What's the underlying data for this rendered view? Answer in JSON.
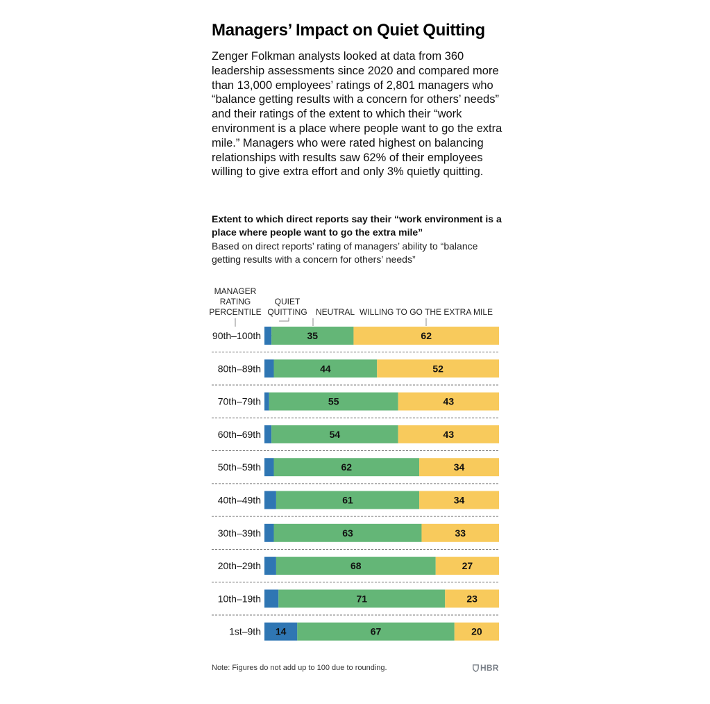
{
  "title": "Managers’ Impact on Quiet Quitting",
  "intro": "Zenger Folkman analysts looked at data from 360 leadership assessments since 2020 and compared more than 13,000 employees’ ratings of 2,801 managers who “balance getting results with a concern for others’ needs” and their ratings of the extent to which their “work environment is a place where people want to go the extra mile.” Managers who were rated highest on balancing relationships with results saw 62% of their employees willing to give extra effort and only 3% quietly quitting.",
  "chart_heading": "Extent to which direct reports say their “work environment is a place where people want to go the extra mile”",
  "chart_subheading": "Based on direct reports’ rating of managers’ ability to “balance getting results with a concern for others’ needs”",
  "note": "Note: Figures do not add up to 100 due to rounding.",
  "brand": "HBR",
  "brand_icon": "shield-icon",
  "chart_data": {
    "type": "bar",
    "orientation": "horizontal",
    "stacked": true,
    "row_header": [
      "MANAGER",
      "RATING",
      "PERCENTILE"
    ],
    "categories": [
      "90th–100th",
      "80th–89th",
      "70th–79th",
      "60th–69th",
      "50th–59th",
      "40th–49th",
      "30th–39th",
      "20th–29th",
      "10th–19th",
      "1st–9th"
    ],
    "series": [
      {
        "name": "QUIET QUITTING",
        "label_lines": [
          "QUIET",
          "QUITTING"
        ],
        "color": "#2f76b3",
        "values": [
          3,
          4,
          2,
          3,
          4,
          5,
          4,
          5,
          6,
          14
        ]
      },
      {
        "name": "NEUTRAL",
        "label_lines": [
          "NEUTRAL"
        ],
        "color": "#64b677",
        "values": [
          35,
          44,
          55,
          54,
          62,
          61,
          63,
          68,
          71,
          67
        ]
      },
      {
        "name": "WILLING TO GO THE EXTRA MILE",
        "label_lines": [
          "WILLING TO GO THE EXTRA MILE"
        ],
        "color": "#f8ca5c",
        "values": [
          62,
          52,
          43,
          43,
          34,
          34,
          33,
          27,
          23,
          20
        ]
      }
    ],
    "first_row_suffix": "%",
    "legend_placement": "top",
    "xlim": [
      0,
      100
    ],
    "grid": false
  }
}
